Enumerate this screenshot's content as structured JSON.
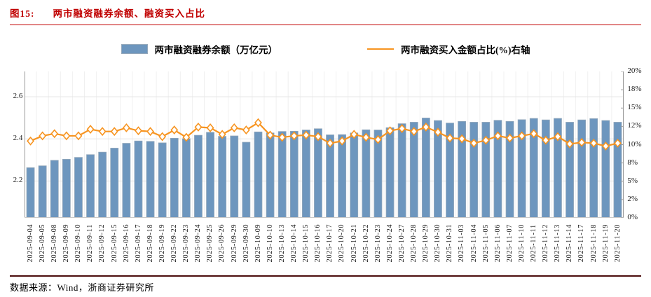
{
  "header": {
    "figure_label": "图15:",
    "title": "两市融资融券余额、融资买入占比"
  },
  "legend": {
    "bar_label": "两市融资融券余额（万亿元）",
    "line_label": "两市融资买入金额占比(%)右轴"
  },
  "footer": {
    "source": "数据来源：Wind，浙商证券研究所"
  },
  "colors": {
    "title_red": "#C00000",
    "bar_fill": "#6D96BE",
    "bar_stroke": "#93A7BA",
    "line": "#F79420",
    "grid_h": "#E4E4E4",
    "grid_v": "#F0F0F0",
    "axis": "#9A9A9A",
    "footer_rule": "#4B0D0D"
  },
  "chart_data": {
    "type": "bar",
    "title": "两市融资融券余额、融资买入占比",
    "xlabel": "",
    "ylabel": "",
    "grid": true,
    "legend_position": "top",
    "categories": [
      "2025-09-04",
      "2025-09-05",
      "2025-09-08",
      "2025-09-09",
      "2025-09-10",
      "2025-09-11",
      "2025-09-12",
      "2025-09-15",
      "2025-09-16",
      "2025-09-17",
      "2025-09-18",
      "2025-09-19",
      "2025-09-22",
      "2025-09-23",
      "2025-09-24",
      "2025-09-25",
      "2025-09-26",
      "2025-09-29",
      "2025-09-30",
      "2025-10-09",
      "2025-10-10",
      "2025-10-13",
      "2025-10-14",
      "2025-10-15",
      "2025-10-16",
      "2025-10-17",
      "2025-10-20",
      "2025-10-21",
      "2025-10-22",
      "2025-10-23",
      "2025-10-24",
      "2025-10-27",
      "2025-10-28",
      "2025-10-29",
      "2025-10-30",
      "2025-10-31",
      "2025-11-03",
      "2025-11-04",
      "2025-11-05",
      "2025-11-06",
      "2025-11-07",
      "2025-11-10",
      "2025-11-11",
      "2025-11-12",
      "2025-11-13",
      "2025-11-14",
      "2025-11-17",
      "2025-11-18",
      "2025-11-19",
      "2025-11-20"
    ],
    "series": [
      {
        "name": "两市融资融券余额（万亿元）",
        "type": "bar",
        "axis": "left",
        "values": [
          2.263,
          2.272,
          2.298,
          2.303,
          2.312,
          2.325,
          2.337,
          2.356,
          2.379,
          2.39,
          2.388,
          2.381,
          2.403,
          2.401,
          2.417,
          2.431,
          2.412,
          2.414,
          2.384,
          2.433,
          2.428,
          2.435,
          2.436,
          2.442,
          2.448,
          2.419,
          2.42,
          2.428,
          2.443,
          2.442,
          2.453,
          2.472,
          2.479,
          2.499,
          2.487,
          2.475,
          2.483,
          2.479,
          2.479,
          2.488,
          2.483,
          2.491,
          2.497,
          2.49,
          2.497,
          2.479,
          2.49,
          2.496,
          2.487,
          2.479
        ]
      },
      {
        "name": "两市融资买入金额占比(%)右轴",
        "type": "line",
        "axis": "right",
        "values": [
          10.5,
          11.2,
          11.5,
          11.2,
          11.2,
          12.1,
          11.8,
          11.8,
          12.3,
          11.9,
          11.8,
          11.1,
          12.0,
          11.0,
          12.4,
          12.3,
          11.4,
          12.3,
          12.0,
          13.0,
          11.3,
          11.0,
          11.2,
          11.3,
          11.1,
          10.2,
          10.5,
          11.4,
          11.0,
          10.7,
          11.9,
          12.2,
          11.8,
          12.4,
          11.7,
          10.9,
          10.8,
          10.2,
          10.6,
          11.2,
          10.9,
          11.2,
          11.5,
          10.6,
          11.1,
          10.1,
          10.3,
          10.2,
          9.8,
          10.2
        ]
      }
    ],
    "left_axis": {
      "ticks": [
        "2.2",
        "2.4",
        "2.6"
      ],
      "tick_values": [
        2.2,
        2.4,
        2.6
      ],
      "ylim": [
        2.025,
        2.72
      ]
    },
    "right_axis": {
      "ticks": [
        "0%",
        "2%",
        "5%",
        "8%",
        "10%",
        "12%",
        "15%",
        "18%",
        "20%"
      ],
      "tick_values": [
        0,
        2.5,
        5,
        7.5,
        10,
        12.5,
        15,
        17.5,
        20
      ],
      "ylim": [
        0,
        20
      ]
    }
  }
}
